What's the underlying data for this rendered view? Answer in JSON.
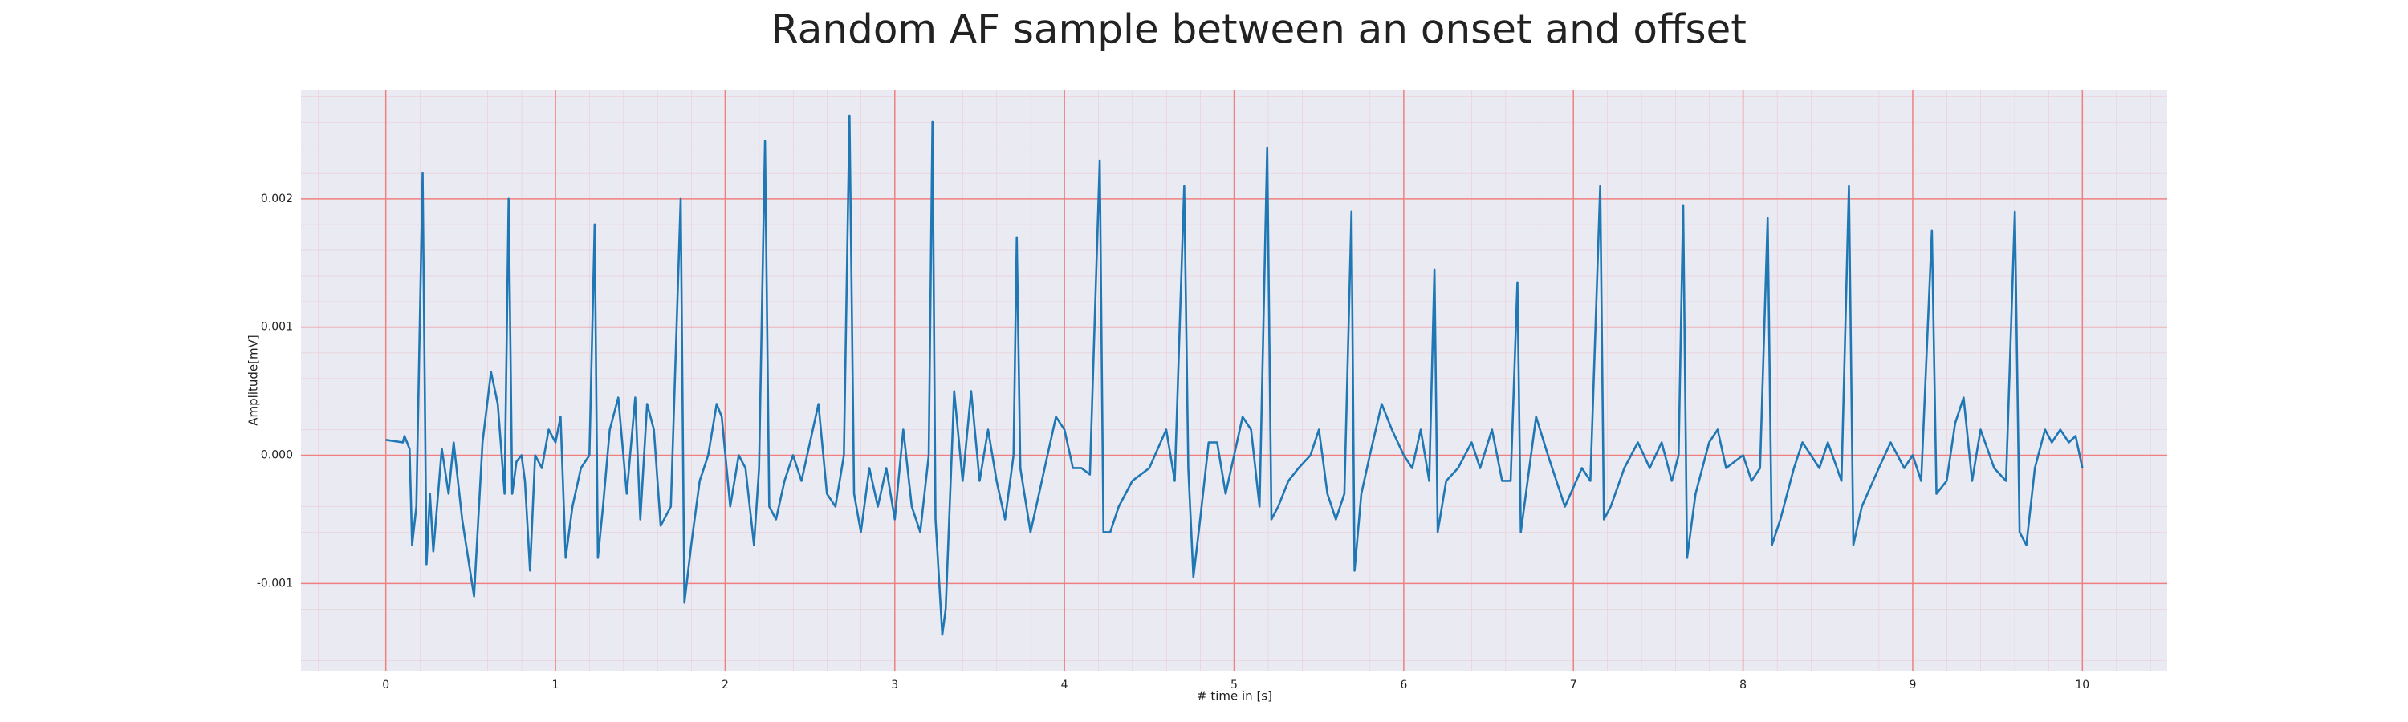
{
  "chart_data": {
    "type": "line",
    "title": "Random AF sample between an onset and offset",
    "xlabel": "# time in [s]",
    "ylabel": "Amplitude[mV]",
    "xlim": [
      -0.5,
      10.5
    ],
    "ylim": [
      -0.00168,
      0.00285
    ],
    "xticks": [
      0,
      1,
      2,
      3,
      4,
      5,
      6,
      7,
      8,
      9,
      10
    ],
    "yticks": [
      {
        "value": -0.001,
        "label": "-0.001"
      },
      {
        "value": 0,
        "label": "0.000"
      },
      {
        "value": 0.001,
        "label": "0.001"
      },
      {
        "value": 0.002,
        "label": "0.002"
      }
    ],
    "grid": true,
    "minor_grid": true,
    "background": "#eaeaf2",
    "grid_color": "#f08080",
    "x": [
      0,
      0.1,
      0.11,
      0.14,
      0.155,
      0.18,
      0.217,
      0.24,
      0.26,
      0.28,
      0.33,
      0.37,
      0.4,
      0.45,
      0.52,
      0.57,
      0.62,
      0.66,
      0.7,
      0.724,
      0.745,
      0.77,
      0.8,
      0.82,
      0.85,
      0.88,
      0.92,
      0.96,
      1.0,
      1.03,
      1.06,
      1.1,
      1.15,
      1.2,
      1.231,
      1.25,
      1.28,
      1.32,
      1.37,
      1.42,
      1.47,
      1.5,
      1.54,
      1.58,
      1.62,
      1.68,
      1.738,
      1.76,
      1.8,
      1.85,
      1.9,
      1.95,
      1.98,
      2.03,
      2.08,
      2.12,
      2.17,
      2.2,
      2.235,
      2.26,
      2.3,
      2.35,
      2.4,
      2.45,
      2.5,
      2.55,
      2.6,
      2.65,
      2.7,
      2.733,
      2.76,
      2.8,
      2.85,
      2.9,
      2.95,
      3.0,
      3.05,
      3.1,
      3.15,
      3.2,
      3.222,
      3.24,
      3.28,
      3.3,
      3.35,
      3.4,
      3.45,
      3.5,
      3.55,
      3.6,
      3.65,
      3.7,
      3.719,
      3.74,
      3.8,
      3.85,
      3.9,
      3.95,
      4.0,
      4.05,
      4.1,
      4.15,
      4.208,
      4.23,
      4.27,
      4.32,
      4.4,
      4.5,
      4.6,
      4.65,
      4.706,
      4.73,
      4.76,
      4.8,
      4.85,
      4.9,
      4.95,
      5.0,
      5.05,
      5.1,
      5.15,
      5.195,
      5.22,
      5.26,
      5.32,
      5.38,
      5.45,
      5.5,
      5.55,
      5.6,
      5.65,
      5.692,
      5.71,
      5.75,
      5.8,
      5.87,
      5.93,
      6.0,
      6.05,
      6.1,
      6.15,
      6.181,
      6.2,
      6.25,
      6.32,
      6.4,
      6.45,
      6.52,
      6.58,
      6.63,
      6.67,
      6.69,
      6.73,
      6.78,
      6.85,
      6.95,
      7.05,
      7.1,
      7.158,
      7.18,
      7.22,
      7.3,
      7.38,
      7.45,
      7.52,
      7.58,
      7.62,
      7.647,
      7.67,
      7.72,
      7.8,
      7.85,
      7.9,
      8.0,
      8.05,
      8.1,
      8.145,
      8.17,
      8.22,
      8.3,
      8.35,
      8.45,
      8.5,
      8.58,
      8.624,
      8.65,
      8.7,
      8.8,
      8.87,
      8.95,
      9.0,
      9.05,
      9.113,
      9.14,
      9.2,
      9.25,
      9.3,
      9.35,
      9.4,
      9.48,
      9.55,
      9.602,
      9.63,
      9.67,
      9.72,
      9.78,
      9.82,
      9.87,
      9.92,
      9.96,
      10.0
    ],
    "series": [
      {
        "color": "#1f77b4",
        "values": [
          0.00012,
          0.0001,
          0.00015,
          5e-05,
          -0.0007,
          -0.0004,
          0.0022,
          -0.00085,
          -0.0003,
          -0.00075,
          5e-05,
          -0.0003,
          0.0001,
          -0.0005,
          -0.0011,
          0.0001,
          0.00065,
          0.0004,
          -0.0003,
          0.002,
          -0.0003,
          -5e-05,
          0.0,
          -0.0002,
          -0.0009,
          0.0,
          -0.0001,
          0.0002,
          0.0001,
          0.0003,
          -0.0008,
          -0.0004,
          -0.0001,
          0.0,
          0.0018,
          -0.0008,
          -0.0004,
          0.0002,
          0.00045,
          -0.0003,
          0.00045,
          -0.0005,
          0.0004,
          0.0002,
          -0.00055,
          -0.0004,
          0.002,
          -0.00115,
          -0.0007,
          -0.0002,
          0.0,
          0.0004,
          0.0003,
          -0.0004,
          0.0,
          -0.0001,
          -0.0007,
          -0.0001,
          0.00245,
          -0.0004,
          -0.0005,
          -0.0002,
          0.0,
          -0.0002,
          0.0001,
          0.0004,
          -0.0003,
          -0.0004,
          0.0,
          0.00265,
          -0.0003,
          -0.0006,
          -0.0001,
          -0.0004,
          -0.0001,
          -0.0005,
          0.0002,
          -0.0004,
          -0.0006,
          0.0,
          0.0026,
          -0.0005,
          -0.0014,
          -0.0012,
          0.0005,
          -0.0002,
          0.0005,
          -0.0002,
          0.0002,
          -0.0002,
          -0.0005,
          0.0,
          0.0017,
          -0.0001,
          -0.0006,
          -0.0003,
          0.0,
          0.0003,
          0.0002,
          -0.0001,
          -0.0001,
          -0.00015,
          0.0023,
          -0.0006,
          -0.0006,
          -0.0004,
          -0.0002,
          -0.0001,
          0.0002,
          -0.0002,
          0.0021,
          -0.0001,
          -0.00095,
          -0.0005,
          0.0001,
          0.0001,
          -0.0003,
          0.0,
          0.0003,
          0.0002,
          -0.0004,
          0.0024,
          -0.0005,
          -0.0004,
          -0.0002,
          -0.0001,
          0.0,
          0.0002,
          -0.0003,
          -0.0005,
          -0.0003,
          0.0019,
          -0.0009,
          -0.0003,
          0.0,
          0.0004,
          0.0002,
          0.0,
          -0.0001,
          0.0002,
          -0.0002,
          0.00145,
          -0.0006,
          -0.0002,
          -0.0001,
          0.0001,
          -0.0001,
          0.0002,
          -0.0002,
          -0.0002,
          0.00135,
          -0.0006,
          -0.0002,
          0.0003,
          0.0,
          -0.0004,
          -0.0001,
          -0.0002,
          0.0021,
          -0.0005,
          -0.0004,
          -0.0001,
          0.0001,
          -0.0001,
          0.0001,
          -0.0002,
          0.0,
          0.00195,
          -0.0008,
          -0.0003,
          0.0001,
          0.0002,
          -0.0001,
          0.0,
          -0.0002,
          -0.0001,
          0.00185,
          -0.0007,
          -0.0005,
          -0.0001,
          0.0001,
          -0.0001,
          0.0001,
          -0.0002,
          0.0021,
          -0.0007,
          -0.0004,
          -0.0001,
          0.0001,
          -0.0001,
          0.0,
          -0.0002,
          0.00175,
          -0.0003,
          -0.0002,
          0.00025,
          0.00045,
          -0.0002,
          0.0002,
          -0.0001,
          -0.0002,
          0.0019,
          -0.0006,
          -0.0007,
          -0.0001,
          0.0002,
          0.0001,
          0.0002,
          0.0001,
          0.00015,
          -0.0001
        ]
      }
    ]
  }
}
